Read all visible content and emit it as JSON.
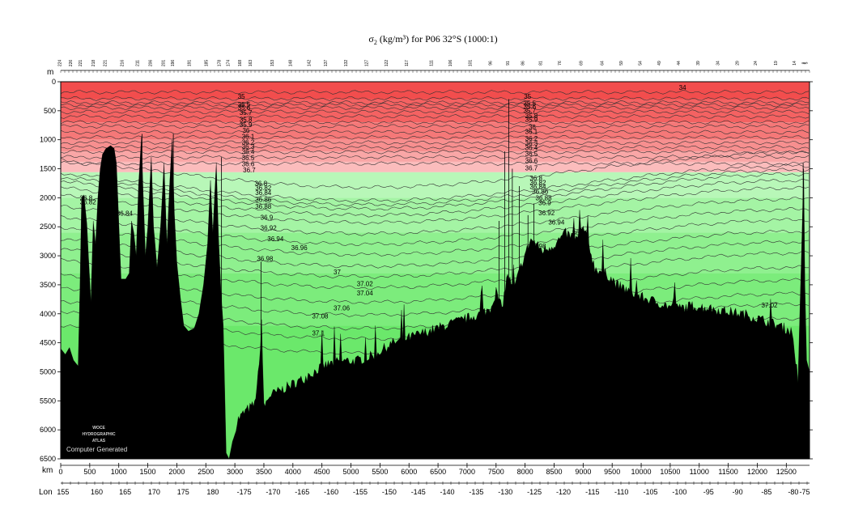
{
  "chart_data": {
    "type": "section",
    "title_sigma": "σ",
    "title_sub": "2",
    "title_rest": " (kg/m³) for P06 32°S (1000:1)",
    "y_unit_label": "m",
    "x_unit_label": "km",
    "lon_label": "Lon",
    "ylim": [
      0,
      6500
    ],
    "xlim": [
      0,
      12900
    ],
    "depth_ticks": [
      0,
      500,
      1000,
      1500,
      2000,
      2500,
      3000,
      3500,
      4000,
      4500,
      5000,
      5500,
      6000,
      6500
    ],
    "km_ticks": [
      0,
      500,
      1000,
      1500,
      2000,
      2500,
      3000,
      3500,
      4000,
      4500,
      5000,
      5500,
      6000,
      6500,
      7000,
      7500,
      8000,
      8500,
      9000,
      9500,
      10000,
      10500,
      11000,
      11500,
      12000,
      12500
    ],
    "lon_ticks": [
      {
        "label": "155",
        "km": 40
      },
      {
        "label": "160",
        "km": 620
      },
      {
        "label": "165",
        "km": 1110
      },
      {
        "label": "170",
        "km": 1610
      },
      {
        "label": "175",
        "km": 2110
      },
      {
        "label": "180",
        "km": 2620
      },
      {
        "label": "-175",
        "km": 3160
      },
      {
        "label": "-170",
        "km": 3660
      },
      {
        "label": "-165",
        "km": 4160
      },
      {
        "label": "-160",
        "km": 4660
      },
      {
        "label": "-155",
        "km": 5160
      },
      {
        "label": "-150",
        "km": 5660
      },
      {
        "label": "-145",
        "km": 6160
      },
      {
        "label": "-140",
        "km": 6660
      },
      {
        "label": "-135",
        "km": 7160
      },
      {
        "label": "-130",
        "km": 7660
      },
      {
        "label": "-125",
        "km": 8160
      },
      {
        "label": "-120",
        "km": 8660
      },
      {
        "label": "-115",
        "km": 9160
      },
      {
        "label": "-110",
        "km": 9660
      },
      {
        "label": "-105",
        "km": 10160
      },
      {
        "label": "-100",
        "km": 10660
      },
      {
        "label": "-95",
        "km": 11160
      },
      {
        "label": "-90",
        "km": 11660
      },
      {
        "label": "-85",
        "km": 12160
      },
      {
        "label": "-80",
        "km": 12620
      },
      {
        "label": "-75",
        "km": 13120
      }
    ],
    "stations": [
      {
        "label": "224",
        "km": 10
      },
      {
        "label": "226",
        "km": 200
      },
      {
        "label": "221",
        "km": 380
      },
      {
        "label": "218",
        "km": 610
      },
      {
        "label": "221",
        "km": 820
      },
      {
        "label": "216",
        "km": 1120
      },
      {
        "label": "211",
        "km": 1400
      },
      {
        "label": "206",
        "km": 1630
      },
      {
        "label": "201",
        "km": 1860
      },
      {
        "label": "196",
        "km": 2030
      },
      {
        "label": "191",
        "km": 2330
      },
      {
        "label": "185",
        "km": 2630
      },
      {
        "label": "178",
        "km": 2860
      },
      {
        "label": "174",
        "km": 3020
      },
      {
        "label": "168",
        "km": 3230
      },
      {
        "label": "163",
        "km": 3420
      },
      {
        "label": "153",
        "km": 3810
      },
      {
        "label": "148",
        "km": 4140
      },
      {
        "label": "142",
        "km": 4470
      },
      {
        "label": "137",
        "km": 4770
      },
      {
        "label": "132",
        "km": 5130
      },
      {
        "label": "127",
        "km": 5500
      },
      {
        "label": "122",
        "km": 5860
      },
      {
        "label": "117",
        "km": 6220
      },
      {
        "label": "111",
        "km": 6660
      },
      {
        "label": "106",
        "km": 7000
      },
      {
        "label": "101",
        "km": 7360
      },
      {
        "label": "96",
        "km": 7720
      },
      {
        "label": "91",
        "km": 8030
      },
      {
        "label": "86",
        "km": 8300
      },
      {
        "label": "81",
        "km": 8620
      },
      {
        "label": "76",
        "km": 8960
      },
      {
        "label": "69",
        "km": 9340
      },
      {
        "label": "64",
        "km": 9720
      },
      {
        "label": "59",
        "km": 10060
      },
      {
        "label": "54",
        "km": 10400
      },
      {
        "label": "49",
        "km": 10740
      },
      {
        "label": "44",
        "km": 11090
      },
      {
        "label": "39",
        "km": 11440
      },
      {
        "label": "34",
        "km": 11790
      },
      {
        "label": "29",
        "km": 12140
      },
      {
        "label": "24",
        "km": 12470
      },
      {
        "label": "19",
        "km": 12830
      },
      {
        "label": "14",
        "km": 13160
      },
      {
        "label": "8",
        "km": 13330
      },
      {
        "label": "5",
        "km": 13370
      }
    ],
    "bands": [
      {
        "top": 0,
        "bottom": 300,
        "color": "#f24d4d"
      },
      {
        "top": 300,
        "bottom": 700,
        "color": "#f46262"
      },
      {
        "top": 700,
        "bottom": 1000,
        "color": "#f57878"
      },
      {
        "top": 1000,
        "bottom": 1200,
        "color": "#f78f8f"
      },
      {
        "top": 1200,
        "bottom": 1380,
        "color": "#f9a6a6"
      },
      {
        "top": 1380,
        "bottom": 1560,
        "color": "#fbbcbc"
      },
      {
        "top": 1560,
        "bottom": 2000,
        "color": "#b8f7b8"
      },
      {
        "top": 2000,
        "bottom": 2600,
        "color": "#a4f4a4"
      },
      {
        "top": 2600,
        "bottom": 3300,
        "color": "#8ff08f"
      },
      {
        "top": 3300,
        "bottom": 4200,
        "color": "#7cec7c"
      },
      {
        "top": 4200,
        "bottom": 6500,
        "color": "#6be86b"
      }
    ],
    "contours": [
      {
        "v": "34",
        "depth": 180
      },
      {
        "v": "35",
        "depth": 290
      },
      {
        "v": "35.1",
        "depth": 360
      },
      {
        "v": "35.3",
        "depth": 400
      },
      {
        "v": "35.5",
        "depth": 450
      },
      {
        "v": "35.6",
        "depth": 520
      },
      {
        "v": "35.7",
        "depth": 600
      },
      {
        "v": "35.8",
        "depth": 700
      },
      {
        "v": "35.9",
        "depth": 770
      },
      {
        "v": "36",
        "depth": 870
      },
      {
        "v": "36.1",
        "depth": 960
      },
      {
        "v": "36.2",
        "depth": 1050
      },
      {
        "v": "36.3",
        "depth": 1130
      },
      {
        "v": "36.4",
        "depth": 1210
      },
      {
        "v": "36.5",
        "depth": 1300
      },
      {
        "v": "36.6",
        "depth": 1410
      },
      {
        "v": "36.7",
        "depth": 1520
      },
      {
        "v": "36.8",
        "depth": 1750
      },
      {
        "v": "36.82",
        "depth": 1820
      },
      {
        "v": "36.84",
        "depth": 1890
      },
      {
        "v": "36.86",
        "depth": 2000
      },
      {
        "v": "36.88",
        "depth": 2130
      },
      {
        "v": "36.9",
        "depth": 2320
      },
      {
        "v": "36.92",
        "depth": 2500
      },
      {
        "v": "36.94",
        "depth": 2680
      },
      {
        "v": "36.96",
        "depth": 2880
      },
      {
        "v": "36.98",
        "depth": 3060
      },
      {
        "v": "37",
        "depth": 3250
      },
      {
        "v": "37.02",
        "depth": 3500
      },
      {
        "v": "37.04",
        "depth": 3720
      },
      {
        "v": "37.06",
        "depth": 3950
      },
      {
        "v": "37.08",
        "depth": 4130
      },
      {
        "v": "37.1",
        "depth": 4380
      }
    ],
    "contour_labels": [
      {
        "text": "34",
        "km": 10650,
        "depth": 140
      },
      {
        "text": "35",
        "km": 3050,
        "depth": 290
      },
      {
        "text": "35.5",
        "km": 3050,
        "depth": 430
      },
      {
        "text": "35.6",
        "km": 3050,
        "depth": 490
      },
      {
        "text": "35.7",
        "km": 3080,
        "depth": 570
      },
      {
        "text": "35.8",
        "km": 3080,
        "depth": 690
      },
      {
        "text": "35.9",
        "km": 3080,
        "depth": 780
      },
      {
        "text": "36",
        "km": 3130,
        "depth": 880
      },
      {
        "text": "36.1",
        "km": 3120,
        "depth": 980
      },
      {
        "text": "36.2",
        "km": 3120,
        "depth": 1080
      },
      {
        "text": "36.3",
        "km": 3120,
        "depth": 1160
      },
      {
        "text": "36.4",
        "km": 3120,
        "depth": 1250
      },
      {
        "text": "36.5",
        "km": 3120,
        "depth": 1350
      },
      {
        "text": "36.6",
        "km": 3120,
        "depth": 1460
      },
      {
        "text": "36.7",
        "km": 3140,
        "depth": 1560
      },
      {
        "text": "36.8",
        "km": 3340,
        "depth": 1790
      },
      {
        "text": "36.82",
        "km": 3350,
        "depth": 1870
      },
      {
        "text": "36.84",
        "km": 3350,
        "depth": 1950
      },
      {
        "text": "36.86",
        "km": 3350,
        "depth": 2070
      },
      {
        "text": "36.88",
        "km": 3350,
        "depth": 2190
      },
      {
        "text": "36.9",
        "km": 3440,
        "depth": 2380
      },
      {
        "text": "36.92",
        "km": 3440,
        "depth": 2560
      },
      {
        "text": "36.94",
        "km": 3560,
        "depth": 2750
      },
      {
        "text": "36.96",
        "km": 3970,
        "depth": 2900
      },
      {
        "text": "36.98",
        "km": 3380,
        "depth": 3090
      },
      {
        "text": "37",
        "km": 4700,
        "depth": 3320
      },
      {
        "text": "37.02",
        "km": 5100,
        "depth": 3520
      },
      {
        "text": "37.04",
        "km": 5100,
        "depth": 3680
      },
      {
        "text": "37.06",
        "km": 4700,
        "depth": 3940
      },
      {
        "text": "37.08",
        "km": 4330,
        "depth": 4080
      },
      {
        "text": "37.1",
        "km": 4330,
        "depth": 4370
      },
      {
        "text": "35",
        "km": 7980,
        "depth": 290
      },
      {
        "text": "35.5",
        "km": 7970,
        "depth": 410
      },
      {
        "text": "35.6",
        "km": 7970,
        "depth": 470
      },
      {
        "text": "35.7",
        "km": 7970,
        "depth": 540
      },
      {
        "text": "35.8",
        "km": 8000,
        "depth": 630
      },
      {
        "text": "35.9",
        "km": 8000,
        "depth": 690
      },
      {
        "text": "36",
        "km": 8060,
        "depth": 820
      },
      {
        "text": "36.1",
        "km": 8000,
        "depth": 900
      },
      {
        "text": "36.2",
        "km": 8000,
        "depth": 1020
      },
      {
        "text": "36.3",
        "km": 8000,
        "depth": 1100
      },
      {
        "text": "36.4",
        "km": 8000,
        "depth": 1180
      },
      {
        "text": "36.5",
        "km": 8000,
        "depth": 1280
      },
      {
        "text": "36.6",
        "km": 8000,
        "depth": 1400
      },
      {
        "text": "36.7",
        "km": 8000,
        "depth": 1530
      },
      {
        "text": "36.8",
        "km": 8080,
        "depth": 1700
      },
      {
        "text": "36.82",
        "km": 8080,
        "depth": 1780
      },
      {
        "text": "36.84",
        "km": 8080,
        "depth": 1850
      },
      {
        "text": "36.86",
        "km": 8120,
        "depth": 1930
      },
      {
        "text": "36.88",
        "km": 8180,
        "depth": 2040
      },
      {
        "text": "36.9",
        "km": 8230,
        "depth": 2130
      },
      {
        "text": "36.92",
        "km": 8230,
        "depth": 2300
      },
      {
        "text": "36.94",
        "km": 8400,
        "depth": 2460
      },
      {
        "text": "36.96",
        "km": 8810,
        "depth": 2640
      },
      {
        "text": "36.98",
        "km": 8080,
        "depth": 2870
      },
      {
        "text": "37.02",
        "km": 12070,
        "depth": 3890
      },
      {
        "text": "36.8",
        "km": 330,
        "depth": 2040
      },
      {
        "text": "36.82",
        "km": 330,
        "depth": 2110
      },
      {
        "text": "36.84",
        "km": 960,
        "depth": 2310
      }
    ],
    "bathymetry": [
      [
        0,
        4600
      ],
      [
        80,
        4700
      ],
      [
        150,
        4580
      ],
      [
        220,
        4800
      ],
      [
        300,
        4900
      ],
      [
        330,
        3600
      ],
      [
        360,
        2000
      ],
      [
        400,
        1950
      ],
      [
        450,
        2450
      ],
      [
        520,
        3800
      ],
      [
        560,
        2400
      ],
      [
        600,
        2800
      ],
      [
        640,
        2000
      ],
      [
        680,
        1500
      ],
      [
        720,
        1250
      ],
      [
        780,
        1150
      ],
      [
        860,
        1100
      ],
      [
        920,
        1150
      ],
      [
        960,
        1400
      ],
      [
        1000,
        2400
      ],
      [
        1040,
        3400
      ],
      [
        1120,
        3400
      ],
      [
        1180,
        3300
      ],
      [
        1220,
        2400
      ],
      [
        1260,
        2600
      ],
      [
        1300,
        3000
      ],
      [
        1340,
        1800
      ],
      [
        1390,
        950
      ],
      [
        1420,
        1900
      ],
      [
        1460,
        3000
      ],
      [
        1500,
        2500
      ],
      [
        1560,
        1300
      ],
      [
        1600,
        2500
      ],
      [
        1660,
        3200
      ],
      [
        1720,
        2500
      ],
      [
        1780,
        1400
      ],
      [
        1830,
        2800
      ],
      [
        1880,
        1700
      ],
      [
        1920,
        1000
      ],
      [
        1960,
        2300
      ],
      [
        2000,
        3100
      ],
      [
        2060,
        3700
      ],
      [
        2120,
        4200
      ],
      [
        2200,
        4300
      ],
      [
        2300,
        4250
      ],
      [
        2380,
        4000
      ],
      [
        2460,
        3500
      ],
      [
        2530,
        2800
      ],
      [
        2580,
        1700
      ],
      [
        2620,
        2600
      ],
      [
        2680,
        1400
      ],
      [
        2720,
        2700
      ],
      [
        2760,
        3600
      ],
      [
        2800,
        4200
      ],
      [
        2850,
        6400
      ],
      [
        2900,
        6500
      ],
      [
        2960,
        6200
      ],
      [
        3060,
        5900
      ],
      [
        3200,
        5750
      ],
      [
        3340,
        5650
      ],
      [
        3420,
        5000
      ],
      [
        3460,
        4200
      ],
      [
        3500,
        5700
      ],
      [
        3600,
        5500
      ],
      [
        3800,
        5400
      ],
      [
        4000,
        5300
      ],
      [
        4200,
        5200
      ],
      [
        4500,
        5000
      ],
      [
        4800,
        4900
      ],
      [
        5100,
        4900
      ],
      [
        5400,
        4800
      ],
      [
        5700,
        4600
      ],
      [
        6000,
        4500
      ],
      [
        6300,
        4400
      ],
      [
        6600,
        4300
      ],
      [
        6900,
        4200
      ],
      [
        7200,
        4100
      ],
      [
        7400,
        4000
      ],
      [
        7500,
        3700
      ],
      [
        7600,
        4000
      ],
      [
        7700,
        3400
      ],
      [
        7800,
        3700
      ],
      [
        7950,
        3200
      ],
      [
        8100,
        2800
      ],
      [
        8300,
        3000
      ],
      [
        8500,
        2900
      ],
      [
        8700,
        2700
      ],
      [
        8900,
        2800
      ],
      [
        9000,
        2600
      ],
      [
        9100,
        2900
      ],
      [
        9200,
        3300
      ],
      [
        9400,
        3400
      ],
      [
        9600,
        3600
      ],
      [
        9800,
        3700
      ],
      [
        10000,
        3800
      ],
      [
        10300,
        3900
      ],
      [
        10600,
        4000
      ],
      [
        10900,
        3950
      ],
      [
        11200,
        4000
      ],
      [
        11500,
        4050
      ],
      [
        11800,
        4100
      ],
      [
        12100,
        4200
      ],
      [
        12400,
        4300
      ],
      [
        12600,
        4400
      ],
      [
        12700,
        5200
      ],
      [
        12760,
        3000
      ],
      [
        12800,
        1500
      ],
      [
        12820,
        3500
      ],
      [
        12850,
        4800
      ],
      [
        12900,
        5000
      ]
    ],
    "bathymetry_spikes": [
      [
        7650,
        1200
      ],
      [
        7720,
        300
      ],
      [
        7780,
        1500
      ],
      [
        7900,
        1800
      ],
      [
        8050,
        2300
      ],
      [
        2770,
        1300
      ],
      [
        1940,
        900
      ],
      [
        1400,
        900
      ],
      [
        3450,
        3100
      ],
      [
        12790,
        1400
      ],
      [
        8150,
        2100
      ],
      [
        7550,
        2400
      ]
    ],
    "watermark": [
      "WOCE",
      "HYDROGRAPHIC",
      "ATLAS"
    ],
    "computer_generated": "Computer Generated"
  }
}
